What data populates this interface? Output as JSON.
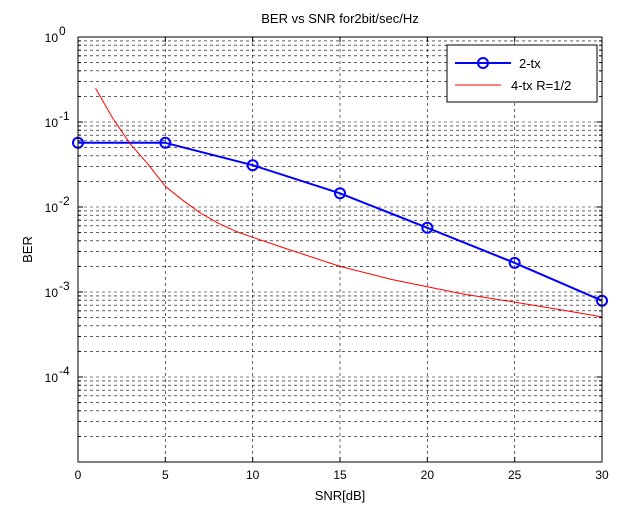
{
  "chart_data": {
    "type": "line",
    "title": "BER vs SNR for2bit/sec/Hz",
    "xlabel": "SNR[dB]",
    "ylabel": "BER",
    "x_scale": "linear",
    "y_scale": "log",
    "xlim": [
      0,
      30
    ],
    "ylim": [
      1e-05,
      1
    ],
    "x_ticks": [
      0,
      5,
      10,
      15,
      20,
      25,
      30
    ],
    "x_tick_labels": [
      "0",
      "5",
      "10",
      "15",
      "20",
      "25",
      "30"
    ],
    "y_ticks": [
      0.0001,
      0.001,
      0.01,
      0.1,
      1
    ],
    "y_tick_labels": [
      {
        "base": "10",
        "exp": "-4"
      },
      {
        "base": "10",
        "exp": "-3"
      },
      {
        "base": "10",
        "exp": "-2"
      },
      {
        "base": "10",
        "exp": "-1"
      },
      {
        "base": "10",
        "exp": "0"
      }
    ],
    "grid": true,
    "legend_position": "top-right",
    "series": [
      {
        "name": "2-tx",
        "color": "#0000ff",
        "marker": "circle",
        "x": [
          0,
          5,
          10,
          15,
          20,
          25,
          30
        ],
        "y": [
          0.057,
          0.057,
          0.031,
          0.0145,
          0.0057,
          0.0022,
          0.00079
        ]
      },
      {
        "name": "4-tx R=1/2",
        "color": "#ff0000",
        "marker": "none",
        "x": [
          1,
          2,
          3,
          4,
          5,
          6,
          7,
          8,
          9,
          10,
          12,
          15,
          18,
          20,
          22,
          25,
          28,
          30
        ],
        "y": [
          0.25,
          0.11,
          0.055,
          0.032,
          0.0175,
          0.012,
          0.0085,
          0.0065,
          0.0052,
          0.0044,
          0.0032,
          0.002,
          0.0014,
          0.00115,
          0.00095,
          0.00076,
          0.0006,
          0.00051
        ]
      }
    ]
  }
}
